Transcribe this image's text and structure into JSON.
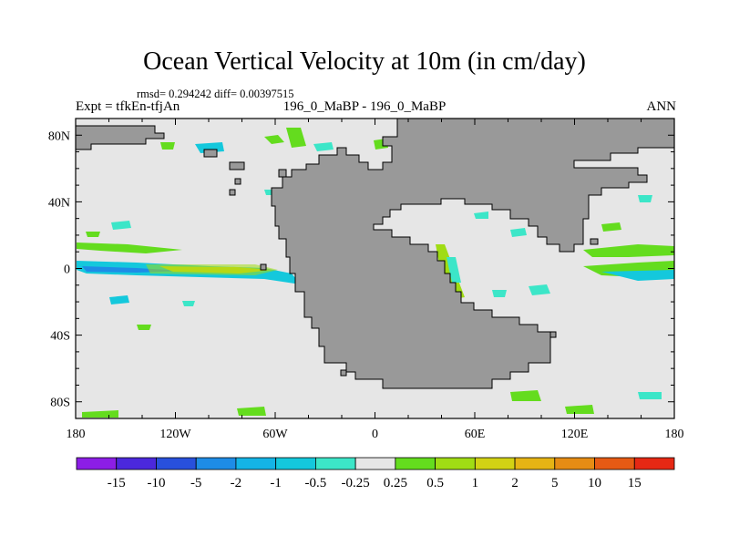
{
  "title": "Ocean Vertical Velocity at 10m (in cm/day)",
  "stats": "rmsd= 0.294242 diff= 0.00397515",
  "expt": "Expt = tfkEn-tfjAn",
  "center_label": "196_0_MaBP - 196_0_MaBP",
  "season": "ANN",
  "lat_ticks": [
    "80N",
    "40N",
    "0",
    "40S",
    "80S"
  ],
  "lon_ticks": [
    "180",
    "120W",
    "60W",
    "0",
    "60E",
    "120E",
    "180"
  ],
  "colorbar": {
    "colors": [
      "#8c1ee6",
      "#4b28dc",
      "#2850dc",
      "#1e8ce6",
      "#14b4e6",
      "#14c8dc",
      "#3ce6c8",
      "#e6e6e6",
      "#64dc1e",
      "#a0dc14",
      "#d2d214",
      "#e6b414",
      "#e68c14",
      "#e65a14",
      "#e62814"
    ],
    "labels": [
      "-15",
      "-10",
      "-5",
      "-2",
      "-1",
      "-0.5",
      "-0.25",
      "0.25",
      "0.5",
      "1",
      "2",
      "5",
      "10",
      "15"
    ]
  },
  "colors": {
    "land": "#999999",
    "neutral": "#e6e6e6",
    "down_light": "#3ce6c8",
    "down_mid": "#14c8dc",
    "down_strong": "#1e8ce6",
    "up_light": "#64dc1e",
    "up_mid": "#a0dc14",
    "up_strong": "#d2d214"
  }
}
